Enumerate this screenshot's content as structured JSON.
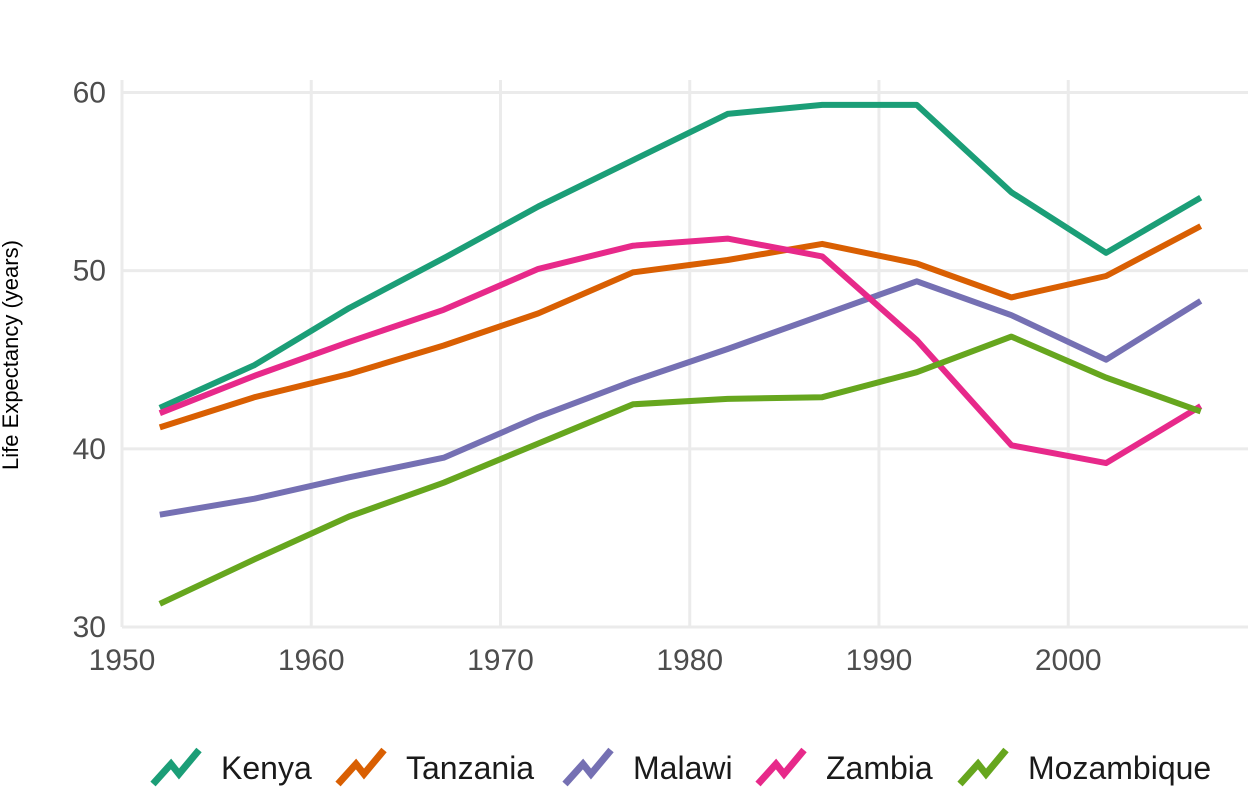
{
  "chart_data": {
    "type": "line",
    "title": "",
    "xlabel": "",
    "ylabel": "Life Expectancy (years)",
    "x": [
      1952,
      1957,
      1962,
      1967,
      1972,
      1977,
      1982,
      1987,
      1992,
      1997,
      2002,
      2007
    ],
    "xlim": [
      1950,
      2009.5
    ],
    "ylim": [
      30,
      60.7
    ],
    "x_ticks": [
      1950,
      1960,
      1970,
      1980,
      1990,
      2000
    ],
    "y_ticks": [
      30,
      40,
      50,
      60
    ],
    "x_tick_labels": [
      "1950",
      "1960",
      "1970",
      "1980",
      "1990",
      "2000"
    ],
    "y_tick_labels": [
      "30",
      "40",
      "50",
      "60"
    ],
    "grid": true,
    "legend_position": "bottom",
    "series": [
      {
        "name": "Kenya",
        "color": "#1b9e77",
        "values": [
          42.3,
          44.7,
          47.9,
          50.7,
          53.6,
          56.2,
          58.8,
          59.3,
          59.3,
          54.4,
          51.0,
          54.1
        ]
      },
      {
        "name": "Tanzania",
        "color": "#d95f02",
        "values": [
          41.2,
          42.9,
          44.2,
          45.8,
          47.6,
          49.9,
          50.6,
          51.5,
          50.4,
          48.5,
          49.7,
          52.5
        ]
      },
      {
        "name": "Malawi",
        "color": "#7570b3",
        "values": [
          36.3,
          37.2,
          38.4,
          39.5,
          41.8,
          43.8,
          45.6,
          47.5,
          49.4,
          47.5,
          45.0,
          48.3
        ]
      },
      {
        "name": "Zambia",
        "color": "#e7298a",
        "values": [
          42.0,
          44.1,
          46.0,
          47.8,
          50.1,
          51.4,
          51.8,
          50.8,
          46.1,
          40.2,
          39.2,
          42.4
        ]
      },
      {
        "name": "Mozambique",
        "color": "#66a61e",
        "values": [
          31.3,
          33.8,
          36.2,
          38.1,
          40.3,
          42.5,
          42.8,
          42.9,
          44.3,
          46.3,
          44.0,
          42.1
        ]
      }
    ]
  }
}
